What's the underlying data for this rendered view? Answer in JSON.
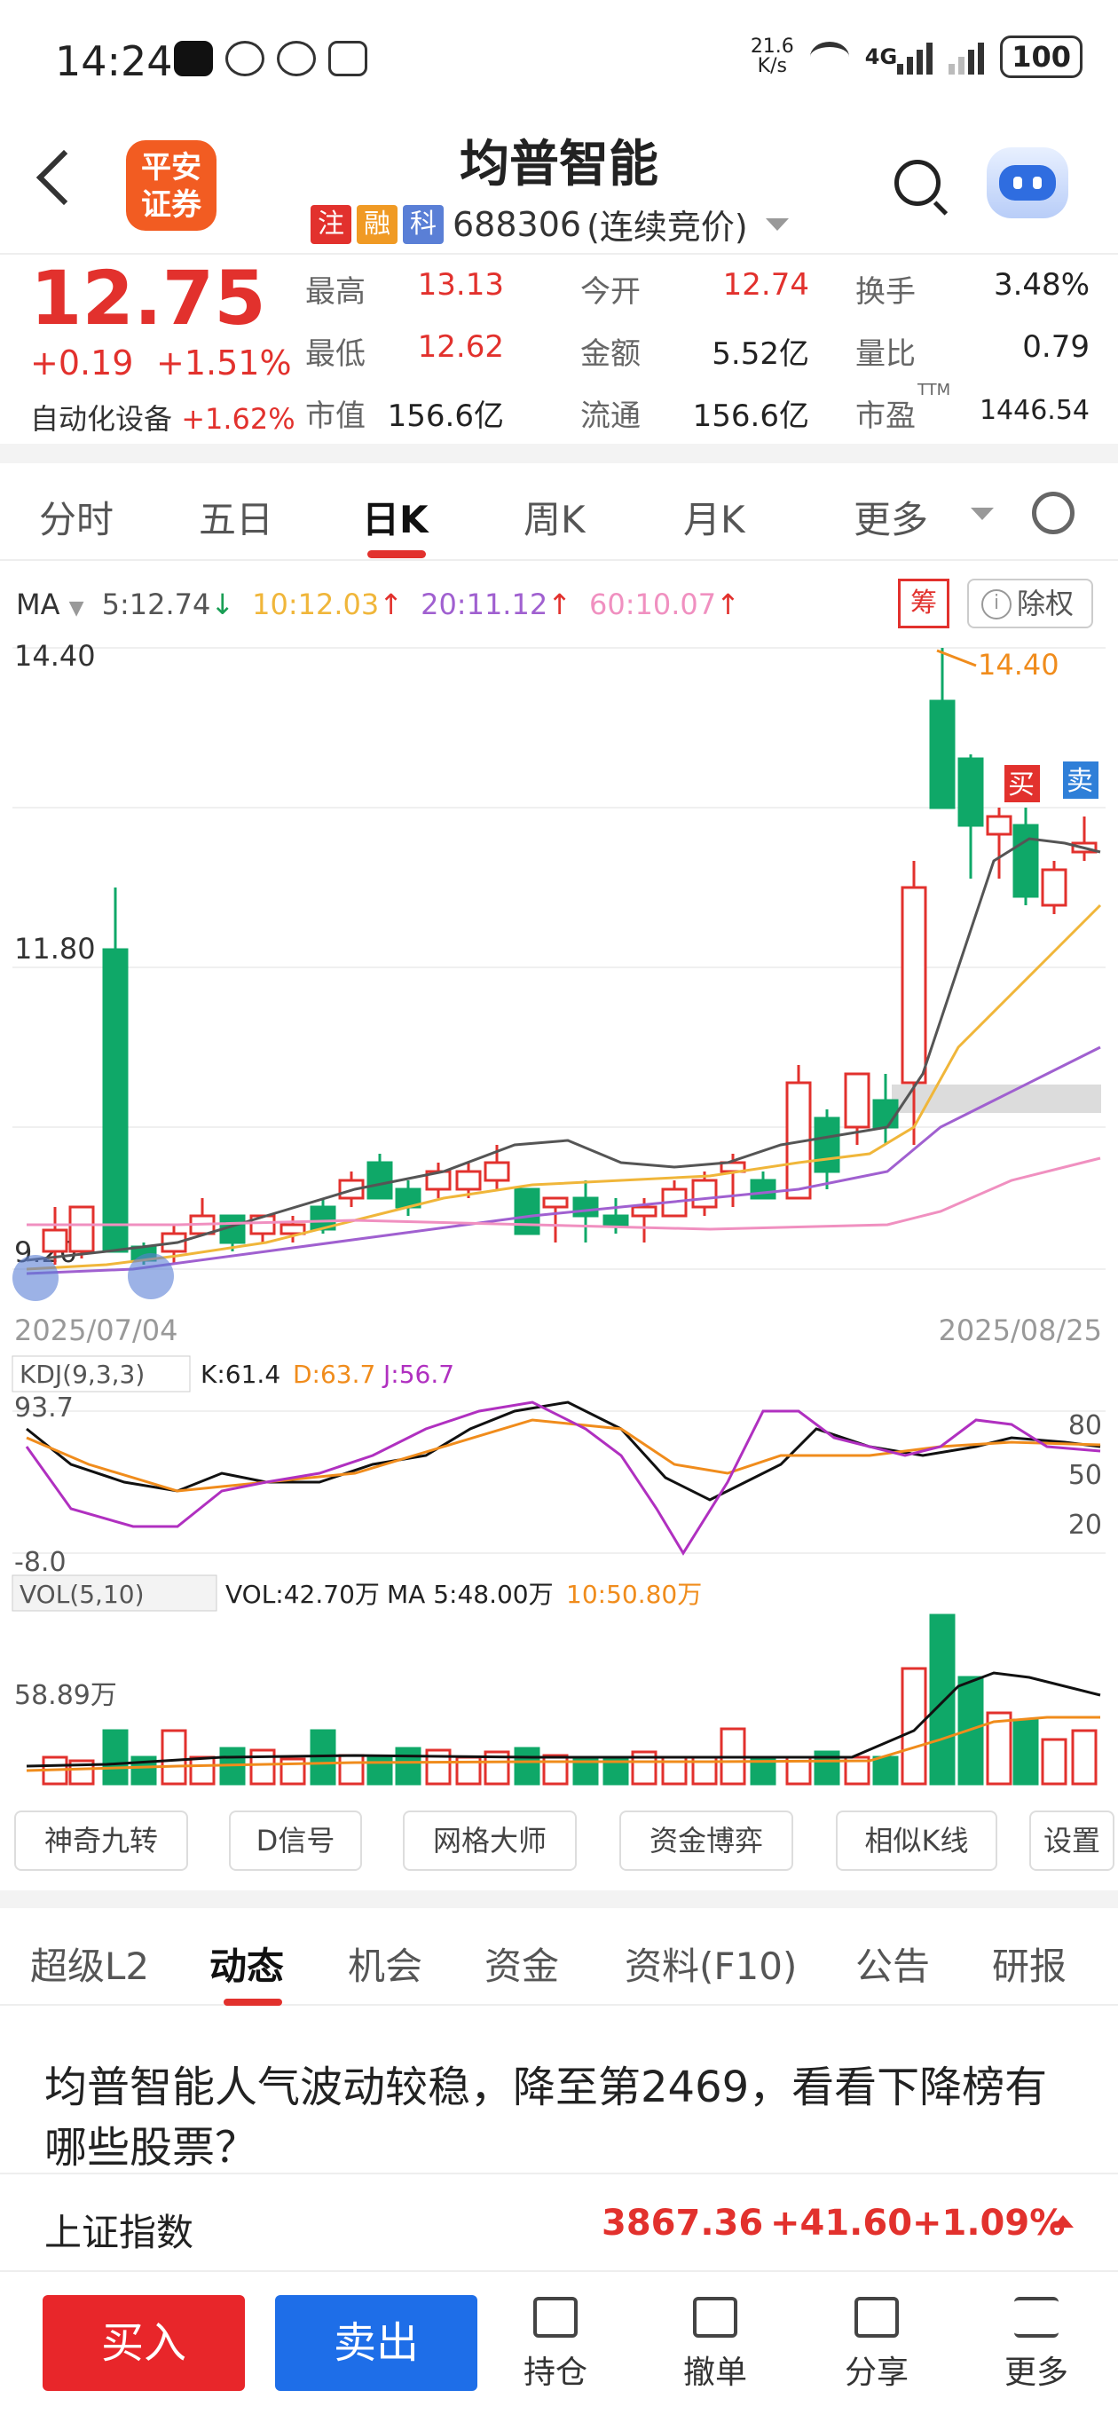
{
  "status_bar": {
    "time": "14:24",
    "speed": "21.6",
    "speed_unit": "K/s",
    "network": "4G",
    "battery": "100"
  },
  "header": {
    "logo_line1": "平安",
    "logo_line2": "证券",
    "stock_name": "均普智能",
    "tags": [
      "注",
      "融",
      "科"
    ],
    "tag_colors": [
      "#e2312d",
      "#f09a24",
      "#5a7fd6"
    ],
    "code": "688306",
    "session": "(连续竞价)"
  },
  "quote": {
    "price": "12.75",
    "change": "+0.19",
    "change_pct": "+1.51%",
    "sector": "自动化设备",
    "sector_pct": "+1.62%",
    "rows": [
      [
        {
          "label": "最高",
          "value": "13.13",
          "red": true
        },
        {
          "label": "今开",
          "value": "12.74",
          "red": true
        },
        {
          "label": "换手",
          "value": "3.48%",
          "red": false
        }
      ],
      [
        {
          "label": "最低",
          "value": "12.62",
          "red": true
        },
        {
          "label": "金额",
          "value": "5.52亿",
          "red": false
        },
        {
          "label": "量比",
          "value": "0.79",
          "red": false
        }
      ],
      [
        {
          "label": "市值",
          "value": "156.6亿",
          "red": false
        },
        {
          "label": "流通",
          "value": "156.6亿",
          "red": false
        },
        {
          "label": "市盈",
          "value": "1446.54",
          "red": false
        }
      ]
    ],
    "pe_superscript": "TTM"
  },
  "period_tabs": [
    "分时",
    "五日",
    "日K",
    "周K",
    "月K",
    "更多"
  ],
  "ma": {
    "label": "MA",
    "ma5": "5:12.74",
    "ma10": "10:12.03",
    "ma20": "20:11.12",
    "ma60": "60:10.07"
  },
  "chip_button": "筹",
  "adjust_button": "除权",
  "kline": {
    "y_high": "14.40",
    "y_mid": "11.80",
    "y_low": "9.20",
    "max_label": "14.40",
    "date_start": "2025/07/04",
    "date_end": "2025/08/25",
    "buy_mark": "买",
    "sell_mark": "卖",
    "colors": {
      "up": "#e2312d",
      "down": "#0fa868",
      "ma5": "#555555",
      "ma10": "#f0b63a",
      "ma20": "#a060d0",
      "ma60": "#f090c0"
    }
  },
  "kdj": {
    "label": "KDJ(9,3,3)",
    "k": "K:61.4",
    "d": "D:63.7",
    "j": "J:56.7",
    "top": "93.7",
    "bottom": "-8.0",
    "lv80": "80",
    "lv50": "50",
    "lv20": "20"
  },
  "vol": {
    "label": "VOL(5,10)",
    "vol": "VOL:42.70万",
    "ma5": "MA 5:48.00万",
    "ma10": "10:50.80万",
    "axis": "58.89万"
  },
  "tools": [
    "神奇九转",
    "D信号",
    "网格大师",
    "资金博弈",
    "相似K线",
    "设置"
  ],
  "content_tabs": [
    "超级L2",
    "动态",
    "机会",
    "资金",
    "资料(F10)",
    "公告",
    "研报"
  ],
  "news_title": "均普智能人气波动较稳，降至第2469，看看下降榜有哪些股票？",
  "index": {
    "name": "上证指数",
    "value": "3867.36",
    "change": "+41.60",
    "pct": "+1.09%"
  },
  "bottom_bar": {
    "buy": "买入",
    "sell": "卖出",
    "items": [
      "持仓",
      "撤单",
      "分享",
      "更多"
    ]
  }
}
